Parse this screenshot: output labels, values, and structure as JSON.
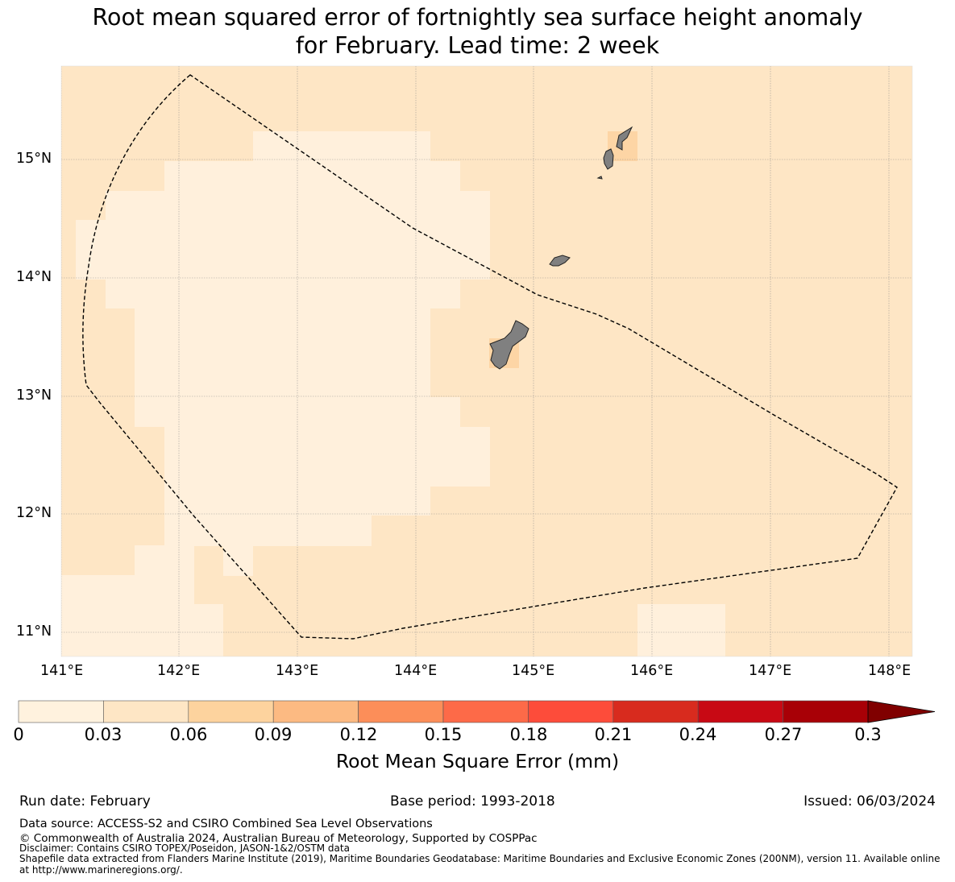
{
  "title": {
    "line1": "Root mean squared error of fortnightly sea surface height anomaly",
    "line2": "for February. Lead time: 2 week"
  },
  "map": {
    "x_ticks": [
      "141°E",
      "142°E",
      "143°E",
      "144°E",
      "145°E",
      "146°E",
      "147°E",
      "148°E"
    ],
    "y_ticks": [
      "15°N",
      "14°N",
      "13°N",
      "12°N",
      "11°N"
    ],
    "lon_range": [
      141.0,
      148.2
    ],
    "lat_range": [
      10.8,
      15.8
    ],
    "grid": true,
    "land_color": "#808080",
    "boundary": "dashed EEZ polygon"
  },
  "colorbar": {
    "label": "Root Mean Square Error (mm)",
    "ticks": [
      "0",
      "0.03",
      "0.06",
      "0.09",
      "0.12",
      "0.15",
      "0.18",
      "0.21",
      "0.24",
      "0.27",
      "0.3"
    ],
    "colors": [
      "#fff2de",
      "#fee6c5",
      "#fdd39e",
      "#fcba82",
      "#fc8e59",
      "#fd6a48",
      "#fd4c3a",
      "#d82b1e",
      "#c80914",
      "#a80006"
    ],
    "extend_color": "#800000"
  },
  "chart_data": {
    "type": "heatmap",
    "title": "Root mean squared error of fortnightly sea surface height anomaly for February. Lead time: 2 week",
    "value_unit": "mm",
    "color_scale": [
      0,
      0.3
    ],
    "categories_legend": [
      "0-0.03",
      "0.03-0.06",
      "0.06-0.09"
    ],
    "regions": [
      {
        "name": "western interior (141.2-144.6°E, 11.5-15.2°N)",
        "value_range": "0-0.03"
      },
      {
        "name": "south-east patch (145.9-146.6°E, 10.8-11.2°N)",
        "value_range": "0-0.03"
      },
      {
        "name": "surrounding ocean",
        "value_range": "0.03-0.06"
      },
      {
        "name": "near Guam (144.6-144.9°E, 13.2-13.5°N)",
        "value_range": "0.06-0.09"
      },
      {
        "name": "near Saipan/Tinian (145.6-145.9°E, 15.0-15.2°N)",
        "value_range": "0.06-0.09"
      }
    ]
  },
  "footer": {
    "run_date": "Run date: February",
    "base_period": "Base period: 1993-2018",
    "issued": "Issued: 06/03/2024",
    "data_source": "Data source: ACCESS-S2 and CSIRO Combined Sea Level Observations",
    "copyright": "© Commonwealth of Australia 2024, Australian Bureau of Meteorology, Supported by COSPPac",
    "disclaimer": "Disclaimer: Contains CSIRO TOPEX/Poseidon, JASON-1&2/OSTM data",
    "shapefile_line1": "Shapefile data extracted from Flanders Marine Institute (2019), Maritime Boundaries Geodatabase: Maritime Boundaries and Exclusive Economic Zones (200NM), version 11. Available online",
    "shapefile_line2": "at http://www.marineregions.org/."
  }
}
